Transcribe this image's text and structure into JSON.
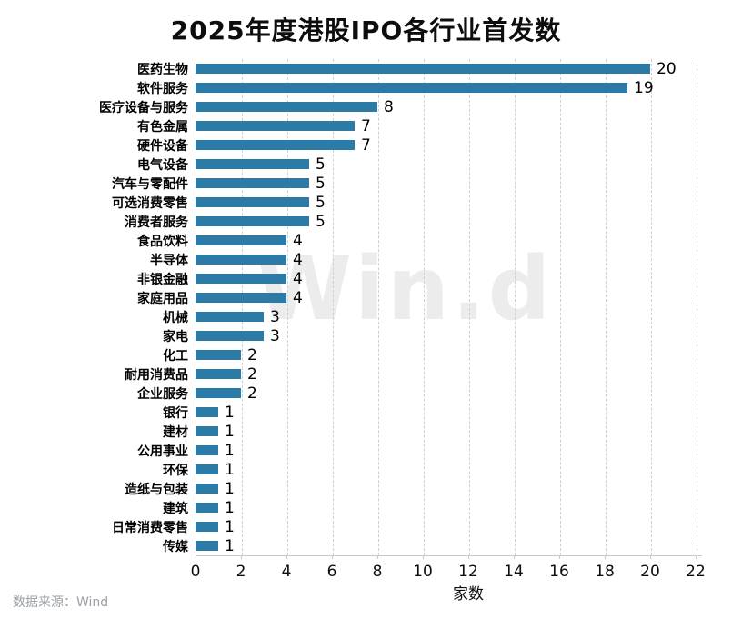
{
  "title": "2025年度港股IPO各行业首发数",
  "watermark": "Win.d",
  "footer": {
    "source_label": "数据来源：Wind"
  },
  "chart_data": {
    "type": "bar",
    "orientation": "horizontal",
    "title": "2025年度港股IPO各行业首发数",
    "xlabel": "家数",
    "ylabel": "",
    "xlim": [
      0,
      22
    ],
    "xticks": [
      0,
      2,
      4,
      6,
      8,
      10,
      12,
      14,
      16,
      18,
      20,
      22
    ],
    "grid": "vertical-dashed",
    "legend": "none",
    "bar_color": "#2b7ba6",
    "grid_color": "#cfcfcf",
    "axis_color": "#c9c9c9",
    "watermark_color": "#ececec",
    "categories": [
      "医药生物",
      "软件服务",
      "医疗设备与服务",
      "有色金属",
      "硬件设备",
      "电气设备",
      "汽车与零配件",
      "可选消费零售",
      "消费者服务",
      "食品饮料",
      "半导体",
      "非银金融",
      "家庭用品",
      "机械",
      "家电",
      "化工",
      "耐用消费品",
      "企业服务",
      "银行",
      "建材",
      "公用事业",
      "环保",
      "造纸与包装",
      "建筑",
      "日常消费零售",
      "传媒"
    ],
    "values": [
      20,
      19,
      8,
      7,
      7,
      5,
      5,
      5,
      5,
      4,
      4,
      4,
      4,
      3,
      3,
      2,
      2,
      2,
      1,
      1,
      1,
      1,
      1,
      1,
      1,
      1
    ]
  }
}
